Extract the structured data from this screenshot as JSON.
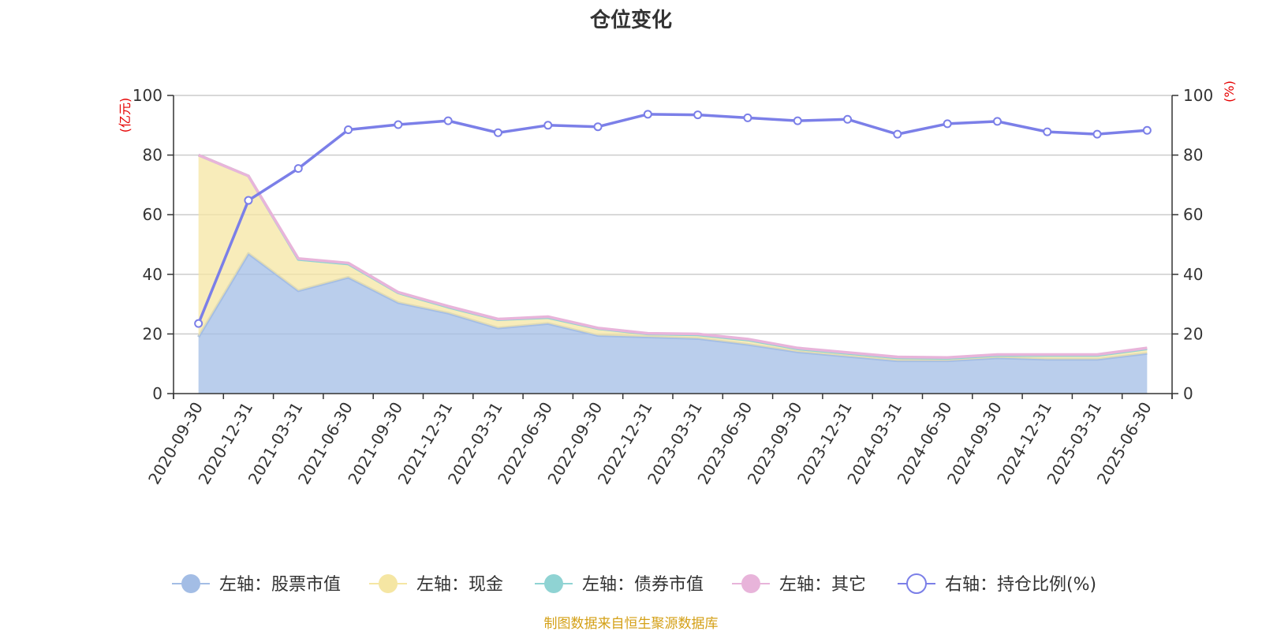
{
  "chart_data": {
    "type": "area",
    "title": "仓位变化",
    "left_axis_unit": "(亿元)",
    "right_axis_unit": "(%)",
    "left_ylim": [
      0,
      100
    ],
    "right_ylim": [
      0,
      100
    ],
    "left_ticks": [
      "0",
      "20",
      "40",
      "60",
      "80",
      "100"
    ],
    "right_ticks": [
      "0",
      "20",
      "40",
      "60",
      "80",
      "100"
    ],
    "grid": true,
    "legend_position": "bottom",
    "categories": [
      "2020-09-30",
      "2020-12-31",
      "2021-03-31",
      "2021-06-30",
      "2021-09-30",
      "2021-12-31",
      "2022-03-31",
      "2022-06-30",
      "2022-09-30",
      "2022-12-31",
      "2023-03-31",
      "2023-06-30",
      "2023-09-30",
      "2023-12-31",
      "2024-03-31",
      "2024-06-30",
      "2024-09-30",
      "2024-12-31",
      "2025-03-31",
      "2025-06-30"
    ],
    "series": [
      {
        "name": "左轴：股票市值",
        "axis": "left",
        "kind": "stacked-area",
        "color": "#a3bde5",
        "values": [
          19.0,
          47.0,
          34.5,
          39.0,
          30.5,
          27.0,
          22.0,
          23.5,
          19.5,
          19.0,
          18.5,
          16.5,
          14.0,
          12.5,
          11.0,
          11.0,
          12.0,
          11.5,
          11.5,
          13.5
        ]
      },
      {
        "name": "左轴：现金",
        "axis": "left",
        "kind": "stacked-area",
        "color": "#f5e6a3",
        "values": [
          61.0,
          26.0,
          10.5,
          4.5,
          3.3,
          2.0,
          2.8,
          2.0,
          2.3,
          1.0,
          1.2,
          1.5,
          1.0,
          1.0,
          1.0,
          0.8,
          0.8,
          1.3,
          1.3,
          1.5
        ]
      },
      {
        "name": "左轴：债券市值",
        "axis": "left",
        "kind": "stacked-area",
        "color": "#8fd3d3",
        "values": [
          0,
          0,
          0,
          0,
          0,
          0,
          0,
          0,
          0,
          0,
          0,
          0,
          0,
          0,
          0,
          0,
          0,
          0,
          0,
          0
        ]
      },
      {
        "name": "左轴：其它",
        "axis": "left",
        "kind": "stacked-area",
        "color": "#e8b4da",
        "values": [
          0,
          0,
          0.3,
          0.3,
          0.2,
          0.3,
          0.2,
          0.3,
          0.2,
          0.2,
          0.3,
          0.3,
          0.3,
          0.3,
          0.3,
          0.3,
          0.3,
          0.3,
          0.3,
          0.3
        ]
      },
      {
        "name": "右轴：持仓比例(%)",
        "axis": "right",
        "kind": "line",
        "color": "#7b7fe8",
        "values": [
          23.5,
          64.8,
          75.5,
          88.5,
          90.2,
          91.5,
          87.5,
          90.0,
          89.5,
          93.7,
          93.5,
          92.5,
          91.5,
          92.0,
          87.0,
          90.5,
          91.3,
          87.8,
          87.0,
          88.3
        ]
      }
    ],
    "source": "制图数据来自恒生聚源数据库"
  }
}
